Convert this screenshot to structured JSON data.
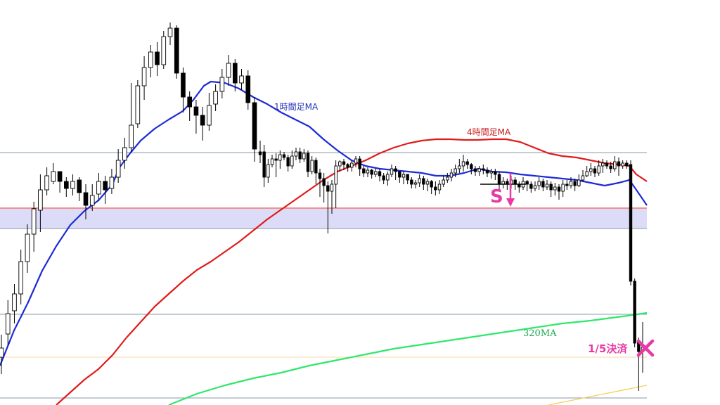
{
  "chart_data": {
    "type": "candlestick",
    "grid": false,
    "ylim": [
      0,
      576
    ],
    "colors": {
      "background": "#ffffff",
      "bull_candle": "#ffffff",
      "bear_candle": "#000000",
      "wick": "#000000",
      "ma_1h": "#1c2bd6",
      "ma_4h": "#e01b1b",
      "ma_320": "#2ee86b",
      "ma_yellow": "#f2d15a",
      "horizontal_gray": "#8a99a8",
      "horizontal_red": "#e02020",
      "zone_fill": "#dcdcf8",
      "marker": "#e83aa4",
      "cutoff": "#f4d9a6"
    },
    "candles_panel1": [
      [
        508,
        495,
        532,
        476
      ],
      [
        475,
        446,
        491,
        427
      ],
      [
        442,
        418,
        460,
        404
      ],
      [
        418,
        372,
        433,
        355
      ],
      [
        372,
        333,
        388,
        319
      ],
      [
        333,
        297,
        358,
        287
      ],
      [
        299,
        270,
        330,
        248
      ],
      [
        270,
        250,
        278,
        238
      ],
      [
        258,
        244,
        262,
        232
      ],
      [
        244,
        258,
        274,
        244
      ],
      [
        258,
        268,
        280,
        252
      ],
      [
        268,
        258,
        278,
        248
      ],
      [
        256,
        274,
        286,
        252
      ],
      [
        274,
        292,
        312,
        262
      ],
      [
        292,
        278,
        300,
        262
      ],
      [
        276,
        258,
        286,
        246
      ],
      [
        258,
        270,
        290,
        250
      ],
      [
        268,
        252,
        276,
        240
      ],
      [
        252,
        228,
        260,
        212
      ],
      [
        228,
        210,
        240,
        196
      ],
      [
        210,
        178,
        216,
        118
      ],
      [
        176,
        122,
        182,
        114
      ],
      [
        122,
        96,
        142,
        80
      ],
      [
        96,
        74,
        110,
        64
      ],
      [
        74,
        92,
        108,
        60
      ],
      [
        92,
        52,
        98,
        44
      ],
      [
        52,
        40,
        64,
        32
      ],
      [
        40,
        104,
        112,
        36
      ],
      [
        104,
        138,
        160,
        96
      ],
      [
        138,
        152,
        172,
        130
      ],
      [
        152,
        164,
        190,
        142
      ],
      [
        164,
        178,
        200,
        152
      ],
      [
        178,
        150,
        186,
        132
      ],
      [
        148,
        130,
        158,
        120
      ],
      [
        130,
        110,
        140,
        98
      ],
      [
        110,
        90,
        122,
        78
      ],
      [
        90,
        118,
        130,
        84
      ],
      [
        118,
        108,
        128,
        98
      ],
      [
        108,
        146,
        156,
        100
      ],
      [
        146,
        212,
        230,
        138
      ]
    ],
    "candles_panel2": [
      [
        216,
        220,
        232,
        200
      ],
      [
        216,
        252,
        266,
        206
      ],
      [
        252,
        234,
        260,
        226
      ],
      [
        234,
        226,
        238,
        220
      ],
      [
        226,
        228,
        252,
        218
      ],
      [
        228,
        220,
        240,
        214
      ],
      [
        220,
        224,
        228,
        216
      ],
      [
        224,
        236,
        244,
        220
      ],
      [
        236,
        222,
        240,
        214
      ],
      [
        222,
        216,
        228,
        210
      ],
      [
        216,
        226,
        232,
        210
      ],
      [
        226,
        218,
        230,
        212
      ],
      [
        218,
        244,
        252,
        214
      ],
      [
        244,
        228,
        248,
        222
      ],
      [
        228,
        246,
        262,
        224
      ],
      [
        246,
        254,
        280,
        240
      ],
      [
        254,
        264,
        288,
        246
      ],
      [
        264,
        272,
        332,
        258
      ],
      [
        272,
        262,
        304,
        256
      ],
      [
        262,
        236,
        296,
        228
      ],
      [
        236,
        230,
        244,
        228
      ],
      [
        230,
        234,
        242,
        226
      ],
      [
        234,
        238,
        244,
        232
      ],
      [
        238,
        232,
        244,
        228
      ],
      [
        232,
        226,
        238,
        222
      ],
      [
        226,
        240,
        250,
        222
      ],
      [
        240,
        246,
        252,
        236
      ],
      [
        246,
        242,
        252,
        238
      ],
      [
        242,
        248,
        254,
        240
      ],
      [
        248,
        244,
        252,
        240
      ],
      [
        244,
        250,
        258,
        240
      ],
      [
        250,
        256,
        262,
        246
      ],
      [
        256,
        248,
        264,
        244
      ],
      [
        248,
        240,
        252,
        234
      ],
      [
        240,
        244,
        256,
        236
      ],
      [
        244,
        252,
        260,
        246
      ],
      [
        252,
        248,
        262,
        244
      ],
      [
        248,
        256,
        262,
        250
      ],
      [
        256,
        262,
        268,
        252
      ],
      [
        262,
        260,
        268,
        256
      ],
      [
        260,
        254,
        266,
        248
      ],
      [
        254,
        262,
        270,
        250
      ],
      [
        262,
        258,
        272,
        254
      ],
      [
        258,
        266,
        276,
        256
      ],
      [
        266,
        270,
        278,
        258
      ],
      [
        270,
        262,
        276,
        256
      ],
      [
        262,
        256,
        266,
        250
      ],
      [
        256,
        252,
        260,
        246
      ],
      [
        252,
        246,
        258,
        240
      ],
      [
        246,
        240,
        252,
        234
      ],
      [
        240,
        236,
        246,
        226
      ],
      [
        236,
        230,
        244,
        220
      ],
      [
        230,
        234,
        240,
        226
      ],
      [
        234,
        240,
        248,
        232
      ],
      [
        240,
        244,
        250,
        236
      ],
      [
        244,
        240,
        250,
        236
      ],
      [
        240,
        242,
        248,
        234
      ],
      [
        242,
        246,
        252,
        238
      ],
      [
        246,
        244,
        254,
        240
      ],
      [
        244,
        248,
        256,
        240
      ],
      [
        248,
        262,
        270,
        244
      ],
      [
        262,
        258,
        268,
        252
      ],
      [
        258,
        262,
        270,
        254
      ],
      [
        262,
        256,
        268,
        250
      ],
      [
        256,
        262,
        270,
        252
      ],
      [
        262,
        266,
        274,
        258
      ],
      [
        266,
        258,
        270,
        252
      ],
      [
        258,
        262,
        272,
        256
      ],
      [
        262,
        268,
        274,
        258
      ],
      [
        268,
        264,
        272,
        258
      ],
      [
        264,
        258,
        270,
        252
      ],
      [
        258,
        266,
        272,
        254
      ],
      [
        266,
        262,
        270,
        256
      ],
      [
        262,
        270,
        280,
        258
      ],
      [
        270,
        266,
        278,
        260
      ],
      [
        266,
        272,
        284,
        262
      ],
      [
        272,
        262,
        280,
        256
      ],
      [
        262,
        264,
        270,
        256
      ],
      [
        264,
        258,
        268,
        252
      ],
      [
        258,
        264,
        272,
        254
      ],
      [
        264,
        256,
        266,
        248
      ],
      [
        256,
        250,
        258,
        242
      ],
      [
        250,
        244,
        252,
        236
      ],
      [
        244,
        240,
        250,
        232
      ],
      [
        240,
        246,
        252,
        236
      ],
      [
        246,
        236,
        250,
        228
      ],
      [
        236,
        232,
        246,
        226
      ],
      [
        232,
        236,
        240,
        228
      ],
      [
        236,
        240,
        246,
        230
      ],
      [
        240,
        230,
        244,
        222
      ],
      [
        230,
        236,
        250,
        224
      ],
      [
        236,
        232,
        240,
        228
      ],
      [
        232,
        236,
        240,
        228
      ],
      [
        234,
        400,
        406,
        228
      ],
      [
        400,
        488,
        494,
        396
      ],
      [
        486,
        500,
        556,
        480
      ],
      [
        500,
        494,
        530,
        458
      ]
    ],
    "series": [
      {
        "key": "ma_1h",
        "points": [
          [
            0,
            520
          ],
          [
            20,
            470
          ],
          [
            40,
            430
          ],
          [
            60,
            385
          ],
          [
            80,
            350
          ],
          [
            100,
            320
          ],
          [
            120,
            300
          ],
          [
            140,
            285
          ],
          [
            160,
            262
          ],
          [
            170,
            238
          ],
          [
            185,
            218
          ],
          [
            200,
            200
          ],
          [
            220,
            183
          ],
          [
            240,
            170
          ],
          [
            260,
            158
          ],
          [
            275,
            142
          ],
          [
            290,
            122
          ],
          [
            300,
            116
          ],
          [
            320,
            118
          ],
          [
            340,
            126
          ],
          [
            360,
            138
          ],
          [
            380,
            148
          ],
          [
            400,
            160
          ],
          [
            420,
            170
          ],
          [
            440,
            180
          ],
          [
            460,
            198
          ],
          [
            480,
            214
          ],
          [
            500,
            228
          ],
          [
            520,
            236
          ],
          [
            540,
            240
          ],
          [
            560,
            242
          ],
          [
            580,
            244
          ],
          [
            600,
            246
          ],
          [
            620,
            250
          ],
          [
            640,
            250
          ],
          [
            660,
            246
          ],
          [
            680,
            240
          ],
          [
            700,
            244
          ],
          [
            720,
            245
          ],
          [
            740,
            248
          ],
          [
            760,
            250
          ],
          [
            780,
            252
          ],
          [
            800,
            254
          ],
          [
            820,
            256
          ],
          [
            840,
            260
          ],
          [
            860,
            264
          ],
          [
            880,
            260
          ],
          [
            895,
            256
          ],
          [
            905,
            270
          ],
          [
            920,
            292
          ]
        ]
      },
      {
        "key": "ma_4h",
        "points": [
          [
            80,
            576
          ],
          [
            100,
            558
          ],
          [
            120,
            540
          ],
          [
            140,
            525
          ],
          [
            160,
            505
          ],
          [
            180,
            480
          ],
          [
            200,
            458
          ],
          [
            220,
            436
          ],
          [
            240,
            418
          ],
          [
            260,
            400
          ],
          [
            280,
            384
          ],
          [
            300,
            372
          ],
          [
            320,
            358
          ],
          [
            340,
            344
          ],
          [
            360,
            328
          ],
          [
            380,
            312
          ],
          [
            400,
            298
          ],
          [
            420,
            284
          ],
          [
            440,
            270
          ],
          [
            460,
            256
          ],
          [
            480,
            244
          ],
          [
            500,
            236
          ],
          [
            520,
            228
          ],
          [
            540,
            218
          ],
          [
            560,
            210
          ],
          [
            580,
            204
          ],
          [
            600,
            200
          ],
          [
            620,
            198
          ],
          [
            640,
            198
          ],
          [
            660,
            199
          ],
          [
            680,
            199
          ],
          [
            700,
            198
          ],
          [
            720,
            198
          ],
          [
            740,
            202
          ],
          [
            760,
            210
          ],
          [
            780,
            218
          ],
          [
            800,
            222
          ],
          [
            820,
            224
          ],
          [
            840,
            228
          ],
          [
            860,
            232
          ],
          [
            880,
            234
          ],
          [
            895,
            236
          ],
          [
            905,
            248
          ],
          [
            920,
            258
          ]
        ]
      },
      {
        "key": "ma_320",
        "points": [
          [
            240,
            576
          ],
          [
            280,
            560
          ],
          [
            320,
            548
          ],
          [
            360,
            538
          ],
          [
            400,
            530
          ],
          [
            440,
            520
          ],
          [
            480,
            512
          ],
          [
            520,
            504
          ],
          [
            560,
            496
          ],
          [
            600,
            490
          ],
          [
            640,
            484
          ],
          [
            680,
            478
          ],
          [
            720,
            472
          ],
          [
            760,
            466
          ],
          [
            800,
            460
          ],
          [
            840,
            456
          ],
          [
            870,
            452
          ],
          [
            900,
            448
          ],
          [
            920,
            445
          ]
        ]
      },
      {
        "key": "ma_yellow",
        "points": [
          [
            780,
            576
          ],
          [
            820,
            568
          ],
          [
            860,
            560
          ],
          [
            900,
            552
          ],
          [
            920,
            548
          ]
        ]
      }
    ],
    "horizontal_lines": [
      {
        "key": "gray_upper",
        "y": 217
      },
      {
        "key": "red",
        "y": 296
      },
      {
        "key": "zone_lower",
        "y": 325
      },
      {
        "key": "gray_lower",
        "y": 447
      },
      {
        "key": "cutoff",
        "y": 508
      },
      {
        "key": "gray_bottom",
        "y": 566
      }
    ],
    "zone": {
      "y_top": 297,
      "y_bottom": 325
    },
    "labels": {
      "ma_1h": "1時間足MA",
      "ma_4h": "4時間足MA",
      "ma_320": "320MA",
      "entry": "S",
      "exit": "1/5決済"
    }
  }
}
